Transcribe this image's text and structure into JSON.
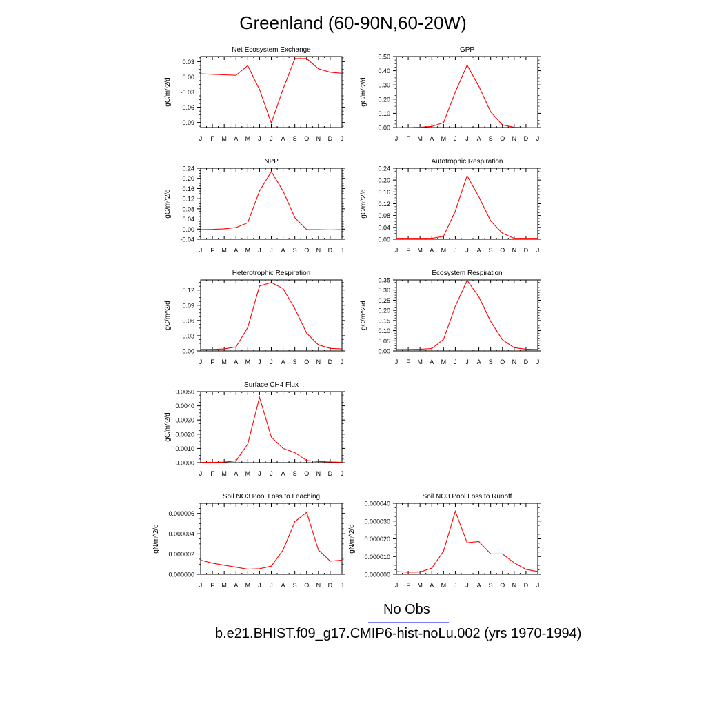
{
  "title": "Greenland (60-90N,60-20W)",
  "legend": {
    "obs_label": "No Obs",
    "obs_color": "#8080ff",
    "model_label": "b.e21.BHIST.f09_g17.CMIP6-hist-noLu.002 (yrs 1970-1994)",
    "model_color": "#ff0000"
  },
  "chart_data": [
    {
      "type": "line",
      "title": "Net Ecosystem Exchange",
      "ylabel": "gC/m^2/d",
      "x": [
        "J",
        "F",
        "M",
        "A",
        "M",
        "J",
        "J",
        "A",
        "S",
        "O",
        "N",
        "D",
        "J"
      ],
      "ylim": [
        -0.1,
        0.04
      ],
      "yticks": [
        "0.03",
        "0.00",
        "-0.03",
        "-0.06",
        "-0.09"
      ],
      "series": [
        {
          "color": "#ff0000",
          "values": [
            0.006,
            0.005,
            0.004,
            0.003,
            0.022,
            -0.025,
            -0.091,
            -0.024,
            0.036,
            0.036,
            0.016,
            0.009,
            0.007
          ]
        }
      ]
    },
    {
      "type": "line",
      "title": "GPP",
      "ylabel": "gC/m^2/d",
      "x": [
        "J",
        "F",
        "M",
        "A",
        "M",
        "J",
        "J",
        "A",
        "S",
        "O",
        "N",
        "D",
        "J"
      ],
      "ylim": [
        0,
        0.5
      ],
      "yticks": [
        "0.50",
        "0.40",
        "0.30",
        "0.20",
        "0.10",
        "0.00"
      ],
      "series": [
        {
          "color": "#ff0000",
          "values": [
            0.0,
            0.0,
            0.002,
            0.008,
            0.035,
            0.25,
            0.44,
            0.29,
            0.11,
            0.018,
            0.002,
            0.0,
            0.0
          ]
        }
      ]
    },
    {
      "type": "line",
      "title": "NPP",
      "ylabel": "gC/m^2/d",
      "x": [
        "J",
        "F",
        "M",
        "A",
        "M",
        "J",
        "J",
        "A",
        "S",
        "O",
        "N",
        "D",
        "J"
      ],
      "ylim": [
        -0.04,
        0.24
      ],
      "yticks": [
        "0.24",
        "0.20",
        "0.16",
        "0.12",
        "0.08",
        "0.04",
        "0.00",
        "-0.04"
      ],
      "series": [
        {
          "color": "#ff0000",
          "values": [
            -0.002,
            -0.001,
            0.001,
            0.006,
            0.025,
            0.15,
            0.227,
            0.15,
            0.045,
            -0.002,
            -0.002,
            -0.003,
            -0.002
          ]
        }
      ]
    },
    {
      "type": "line",
      "title": "Autotrophic Respiration",
      "ylabel": "gC/m^2/d",
      "x": [
        "J",
        "F",
        "M",
        "A",
        "M",
        "J",
        "J",
        "A",
        "S",
        "O",
        "N",
        "D",
        "J"
      ],
      "ylim": [
        0,
        0.24
      ],
      "yticks": [
        "0.24",
        "0.20",
        "0.16",
        "0.12",
        "0.08",
        "0.04",
        "0.00"
      ],
      "series": [
        {
          "color": "#ff0000",
          "values": [
            0.003,
            0.003,
            0.003,
            0.003,
            0.01,
            0.095,
            0.215,
            0.143,
            0.062,
            0.02,
            0.003,
            0.003,
            0.003
          ]
        }
      ]
    },
    {
      "type": "line",
      "title": "Heterotrophic Respiration",
      "ylabel": "gC/m^2/d",
      "x": [
        "J",
        "F",
        "M",
        "A",
        "M",
        "J",
        "J",
        "A",
        "S",
        "O",
        "N",
        "D",
        "J"
      ],
      "ylim": [
        0,
        0.14
      ],
      "yticks": [
        "0.12",
        "0.09",
        "0.06",
        "0.03",
        "0.00"
      ],
      "series": [
        {
          "color": "#ff0000",
          "values": [
            0.003,
            0.003,
            0.004,
            0.008,
            0.046,
            0.128,
            0.135,
            0.123,
            0.083,
            0.035,
            0.012,
            0.005,
            0.004
          ]
        }
      ]
    },
    {
      "type": "line",
      "title": "Ecosystem Respiration",
      "ylabel": "gC/m^2/d",
      "x": [
        "J",
        "F",
        "M",
        "A",
        "M",
        "J",
        "J",
        "A",
        "S",
        "O",
        "N",
        "D",
        "J"
      ],
      "ylim": [
        0,
        0.35
      ],
      "yticks": [
        "0.35",
        "0.30",
        "0.25",
        "0.20",
        "0.15",
        "0.10",
        "0.05",
        "0.00"
      ],
      "series": [
        {
          "color": "#ff0000",
          "values": [
            0.007,
            0.007,
            0.008,
            0.012,
            0.057,
            0.22,
            0.348,
            0.266,
            0.145,
            0.055,
            0.016,
            0.009,
            0.007
          ]
        }
      ]
    },
    {
      "type": "line",
      "title": "Surface CH4 Flux",
      "ylabel": "gC/m^2/d",
      "x": [
        "J",
        "F",
        "M",
        "A",
        "M",
        "J",
        "J",
        "A",
        "S",
        "O",
        "N",
        "D",
        "J"
      ],
      "ylim": [
        0,
        0.005
      ],
      "yticks": [
        "0.0050",
        "0.0040",
        "0.0030",
        "0.0020",
        "0.0010",
        "0.0000"
      ],
      "series": [
        {
          "color": "#ff0000",
          "values": [
            2e-05,
            2e-05,
            4e-05,
            0.00012,
            0.0013,
            0.0046,
            0.0018,
            0.001,
            0.0007,
            0.00015,
            8e-05,
            5e-05,
            3e-05
          ]
        }
      ]
    },
    {
      "type": "line",
      "title": "Soil NO3 Pool Loss to Leaching",
      "ylabel": "gN/m^2/d",
      "x": [
        "J",
        "F",
        "M",
        "A",
        "M",
        "J",
        "J",
        "A",
        "S",
        "O",
        "N",
        "D",
        "J"
      ],
      "ylim": [
        0,
        7e-06
      ],
      "yticks": [
        "0.000006",
        "0.000004",
        "0.000002",
        "0.000000"
      ],
      "series": [
        {
          "color": "#ff0000",
          "values": [
            1.4e-06,
            1.1e-06,
            9e-07,
            7e-07,
            5e-07,
            5.5e-07,
            8e-07,
            2.4e-06,
            5.2e-06,
            6.1e-06,
            2.4e-06,
            1.3e-06,
            1.4e-06
          ]
        }
      ]
    },
    {
      "type": "line",
      "title": "Soil NO3 Pool Loss to Runoff",
      "ylabel": "gN/m^2/d",
      "x": [
        "J",
        "F",
        "M",
        "A",
        "M",
        "J",
        "J",
        "A",
        "S",
        "O",
        "N",
        "D",
        "J"
      ],
      "ylim": [
        0,
        4e-05
      ],
      "yticks": [
        "0.000040",
        "0.000030",
        "0.000020",
        "0.000010",
        "0.000000"
      ],
      "series": [
        {
          "color": "#ff0000",
          "values": [
            1.5e-06,
            1.2e-06,
            1.3e-06,
            3.5e-06,
            1.3e-05,
            3.55e-05,
            1.78e-05,
            1.85e-05,
            1.15e-05,
            1.15e-05,
            6.5e-06,
            2.8e-06,
            1.6e-06
          ]
        }
      ]
    }
  ]
}
